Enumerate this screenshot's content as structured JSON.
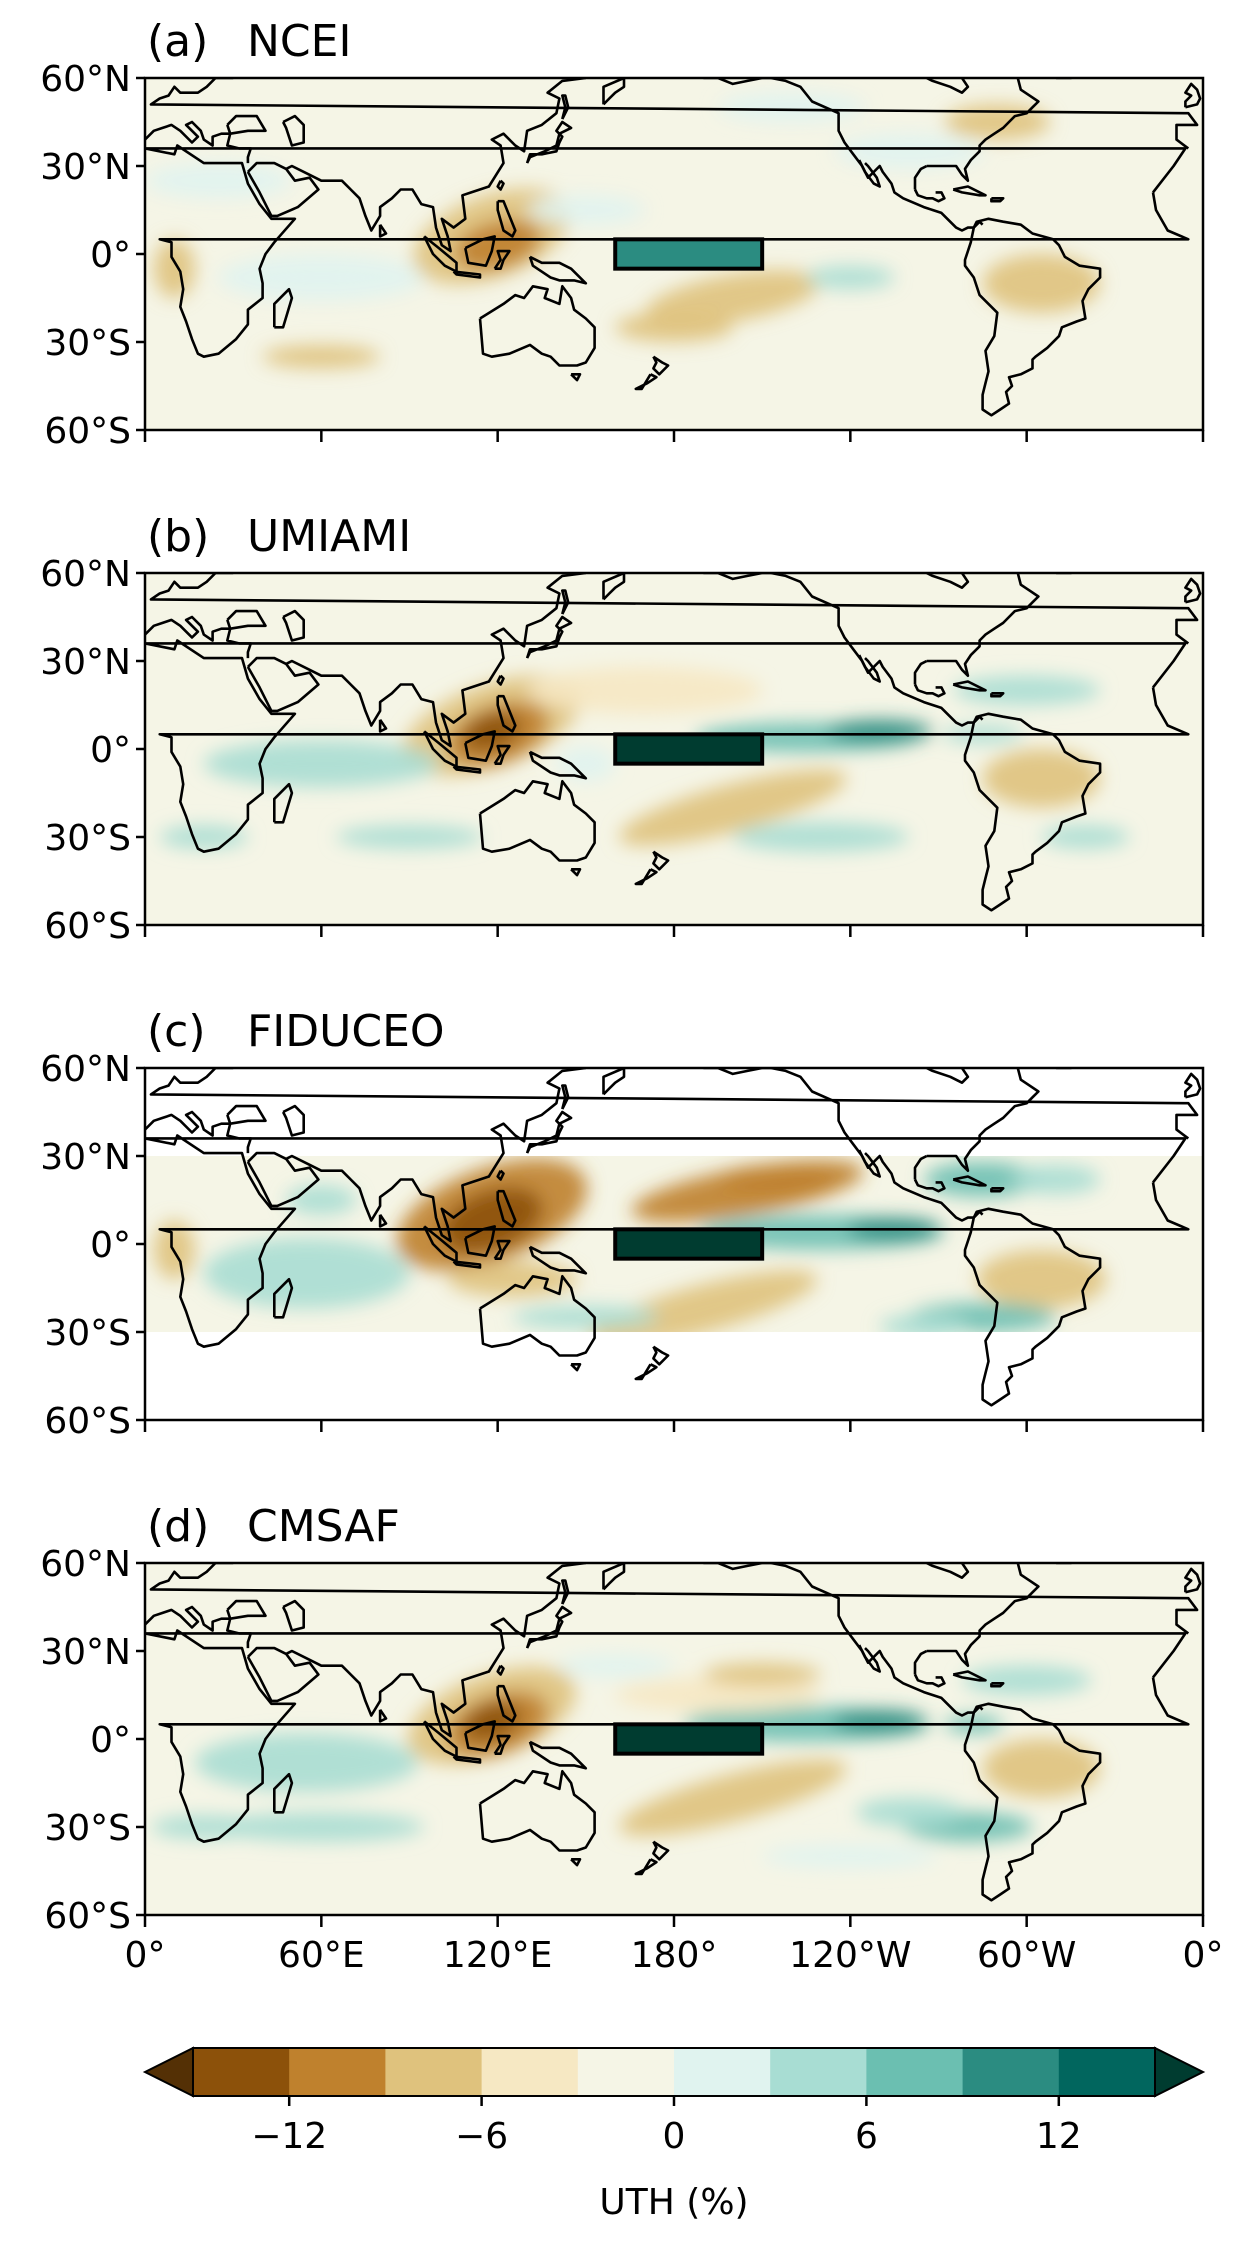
{
  "panels": [
    {
      "letter": "(a)",
      "name": "NCEI",
      "coverage": "global"
    },
    {
      "letter": "(b)",
      "name": "UMIAMI",
      "coverage": "global"
    },
    {
      "letter": "(c)",
      "name": "FIDUCEO",
      "coverage": "30S-30N"
    },
    {
      "letter": "(d)",
      "name": "CMSAF",
      "coverage": "global"
    }
  ],
  "lat_ticks": [
    "60°N",
    "30°N",
    "0°",
    "30°S",
    "60°S"
  ],
  "lon_ticks": [
    "0°",
    "60°E",
    "120°E",
    "180°",
    "120°W",
    "60°W",
    "0°"
  ],
  "highlight_box": {
    "lon_min": 160,
    "lon_max": 210,
    "lat_min": -5,
    "lat_max": 5
  },
  "colorbar": {
    "label": "UTH (%)",
    "ticks": [
      "−12",
      "−6",
      "0",
      "6",
      "12"
    ],
    "levels": [
      -15,
      -12,
      -9,
      -6,
      -3,
      0,
      3,
      6,
      9,
      12,
      15
    ],
    "colors": [
      "#8c510a",
      "#bf812d",
      "#dfc27d",
      "#f6e8c3",
      "#f5f5e6",
      "#e0f3ef",
      "#a8ddd3",
      "#6bbfb1",
      "#2b8c81",
      "#01665e"
    ],
    "under_color": "#543005",
    "over_color": "#003c30"
  }
}
